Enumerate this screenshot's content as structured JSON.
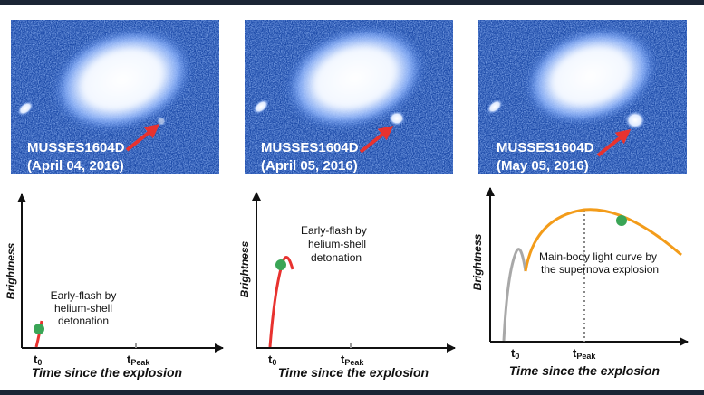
{
  "panels": [
    {
      "image": {
        "name": "MUSSES1604D",
        "date": "(April 04, 2016)"
      },
      "plot": {
        "y_label": "Brightness",
        "x_label": "Time since the explosion",
        "ticks": [
          {
            "t": "t",
            "sub": "0"
          },
          {
            "t": "t",
            "sub": "Peak"
          }
        ],
        "annotation": [
          "Early-flash by",
          "helium-shell",
          "detonation"
        ]
      }
    },
    {
      "image": {
        "name": "MUSSES1604D",
        "date": "(April 05, 2016)"
      },
      "plot": {
        "y_label": "Brightness",
        "x_label": "Time since the explosion",
        "ticks": [
          {
            "t": "t",
            "sub": "0"
          },
          {
            "t": "t",
            "sub": "Peak"
          }
        ],
        "annotation": [
          "Early-flash by",
          "helium-shell",
          "detonation"
        ]
      }
    },
    {
      "image": {
        "name": "MUSSES1604D",
        "date": "(May 05, 2016)"
      },
      "plot": {
        "y_label": "Brightness",
        "x_label": "Time since the explosion",
        "ticks": [
          {
            "t": "t",
            "sub": "0"
          },
          {
            "t": "t",
            "sub": "Peak"
          }
        ],
        "annotation": [
          "Main-body light curve by",
          "the supernova explosion"
        ]
      }
    }
  ]
}
